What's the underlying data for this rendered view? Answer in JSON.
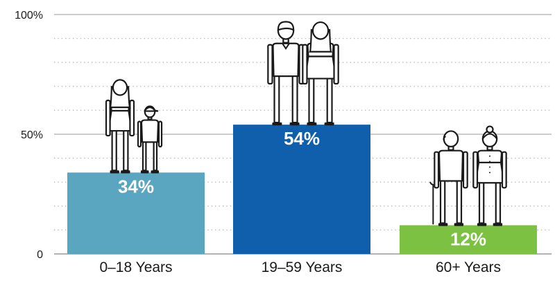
{
  "chart_data": {
    "type": "bar",
    "categories": [
      "0–18 Years",
      "19–59 Years",
      "60+ Years"
    ],
    "values": [
      34,
      54,
      12
    ],
    "value_labels": [
      "34%",
      "54%",
      "12%"
    ],
    "ylim": [
      0,
      100
    ],
    "yticks": [
      0,
      50,
      100
    ],
    "ytick_labels": [
      "0",
      "50%",
      "100%"
    ],
    "minor_gridlines_every": 10,
    "colors": [
      "#5aa6c1",
      "#0f5fad",
      "#7dc142"
    ],
    "figures": [
      [
        "young-woman-icon",
        "boy-with-cap-icon"
      ],
      [
        "man-icon",
        "woman-icon"
      ],
      [
        "elderly-man-with-cane-icon",
        "elderly-woman-icon"
      ]
    ]
  }
}
